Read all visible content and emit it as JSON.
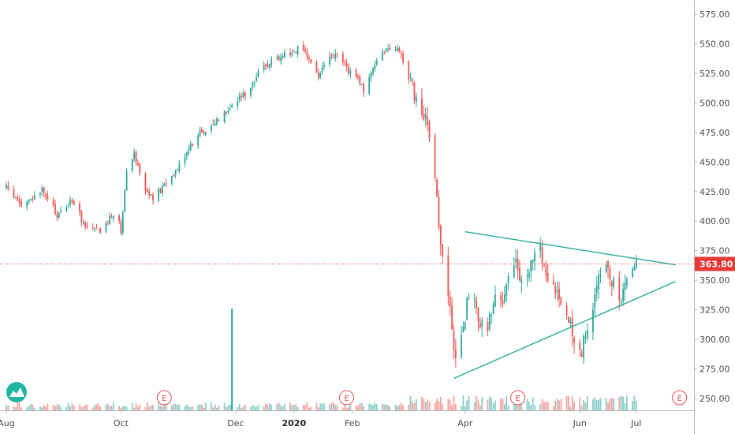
{
  "chart_data": {
    "type": "candlestick",
    "title": "",
    "xlabel": "",
    "ylabel": "",
    "ylim": [
      242,
      582
    ],
    "grid": false,
    "y_ticks": [
      250,
      275,
      300,
      325,
      350,
      375,
      400,
      425,
      450,
      475,
      500,
      525,
      550,
      575
    ],
    "y_tick_labels": [
      "250.00",
      "275.00",
      "300.00",
      "325.00",
      "350.00",
      "375.00",
      "400.00",
      "425.00",
      "450.00",
      "475.00",
      "500.00",
      "525.00",
      "550.00",
      "575.00"
    ],
    "x_ticks": [
      {
        "label": "Aug",
        "date": "2019-08-01",
        "bold": false
      },
      {
        "label": "Oct",
        "date": "2019-10-01",
        "bold": false
      },
      {
        "label": "Dec",
        "date": "2019-12-01",
        "bold": false
      },
      {
        "label": "2020",
        "date": "2020-01-01",
        "bold": true
      },
      {
        "label": "Feb",
        "date": "2020-02-01",
        "bold": false
      },
      {
        "label": "Apr",
        "date": "2020-04-01",
        "bold": false
      },
      {
        "label": "Jun",
        "date": "2020-06-01",
        "bold": false
      },
      {
        "label": "Jul",
        "date": "2020-07-01",
        "bold": false
      }
    ],
    "x_range": [
      "2019-08-01",
      "2020-07-25"
    ],
    "price_series": [
      {
        "date": "2019-08-01",
        "price": 428
      },
      {
        "date": "2019-08-10",
        "price": 412
      },
      {
        "date": "2019-08-20",
        "price": 426
      },
      {
        "date": "2019-08-28",
        "price": 405
      },
      {
        "date": "2019-09-05",
        "price": 418
      },
      {
        "date": "2019-09-12",
        "price": 395
      },
      {
        "date": "2019-09-20",
        "price": 390
      },
      {
        "date": "2019-09-28",
        "price": 410
      },
      {
        "date": "2019-10-01",
        "price": 392
      },
      {
        "date": "2019-10-04",
        "price": 445
      },
      {
        "date": "2019-10-08",
        "price": 458
      },
      {
        "date": "2019-10-13",
        "price": 430
      },
      {
        "date": "2019-10-18",
        "price": 418
      },
      {
        "date": "2019-10-25",
        "price": 432
      },
      {
        "date": "2019-11-01",
        "price": 448
      },
      {
        "date": "2019-11-06",
        "price": 462
      },
      {
        "date": "2019-11-12",
        "price": 475
      },
      {
        "date": "2019-11-18",
        "price": 480
      },
      {
        "date": "2019-11-25",
        "price": 493
      },
      {
        "date": "2019-12-02",
        "price": 502
      },
      {
        "date": "2019-12-08",
        "price": 512
      },
      {
        "date": "2019-12-14",
        "price": 527
      },
      {
        "date": "2019-12-20",
        "price": 536
      },
      {
        "date": "2019-12-27",
        "price": 541
      },
      {
        "date": "2020-01-03",
        "price": 545
      },
      {
        "date": "2020-01-09",
        "price": 538
      },
      {
        "date": "2020-01-14",
        "price": 522
      },
      {
        "date": "2020-01-18",
        "price": 536
      },
      {
        "date": "2020-01-24",
        "price": 540
      },
      {
        "date": "2020-01-30",
        "price": 528
      },
      {
        "date": "2020-02-04",
        "price": 522
      },
      {
        "date": "2020-02-08",
        "price": 505
      },
      {
        "date": "2020-02-12",
        "price": 532
      },
      {
        "date": "2020-02-18",
        "price": 545
      },
      {
        "date": "2020-02-22",
        "price": 541
      },
      {
        "date": "2020-02-26",
        "price": 546
      },
      {
        "date": "2020-03-01",
        "price": 525
      },
      {
        "date": "2020-03-05",
        "price": 508
      },
      {
        "date": "2020-03-09",
        "price": 492
      },
      {
        "date": "2020-03-12",
        "price": 480
      },
      {
        "date": "2020-03-15",
        "price": 445
      },
      {
        "date": "2020-03-18",
        "price": 400
      },
      {
        "date": "2020-03-21",
        "price": 360
      },
      {
        "date": "2020-03-24",
        "price": 330
      },
      {
        "date": "2020-03-27",
        "price": 278
      },
      {
        "date": "2020-03-30",
        "price": 298
      },
      {
        "date": "2020-04-03",
        "price": 340
      },
      {
        "date": "2020-04-08",
        "price": 320
      },
      {
        "date": "2020-04-12",
        "price": 300
      },
      {
        "date": "2020-04-17",
        "price": 345
      },
      {
        "date": "2020-04-21",
        "price": 335
      },
      {
        "date": "2020-04-26",
        "price": 372
      },
      {
        "date": "2020-05-01",
        "price": 348
      },
      {
        "date": "2020-05-06",
        "price": 360
      },
      {
        "date": "2020-05-10",
        "price": 382
      },
      {
        "date": "2020-05-14",
        "price": 352
      },
      {
        "date": "2020-05-19",
        "price": 345
      },
      {
        "date": "2020-05-24",
        "price": 330
      },
      {
        "date": "2020-05-28",
        "price": 302
      },
      {
        "date": "2020-06-02",
        "price": 292
      },
      {
        "date": "2020-06-06",
        "price": 318
      },
      {
        "date": "2020-06-10",
        "price": 345
      },
      {
        "date": "2020-06-14",
        "price": 368
      },
      {
        "date": "2020-06-18",
        "price": 352
      },
      {
        "date": "2020-06-22",
        "price": 330
      },
      {
        "date": "2020-06-26",
        "price": 346
      },
      {
        "date": "2020-06-29",
        "price": 358
      },
      {
        "date": "2020-07-01",
        "price": 363.8
      }
    ],
    "volume_spike": {
      "date": "2019-11-29",
      "price_top": 326
    },
    "trendlines": [
      {
        "name": "upper",
        "start": {
          "date": "2020-04-01",
          "price": 391
        },
        "end": {
          "date": "2020-07-22",
          "price": 363
        }
      },
      {
        "name": "lower",
        "start": {
          "date": "2020-03-26",
          "price": 267
        },
        "end": {
          "date": "2020-07-22",
          "price": 349
        }
      }
    ],
    "current_price": 363.8,
    "current_price_label": "363.80",
    "earnings_markers": [
      {
        "date": "2019-10-24",
        "label": "E"
      },
      {
        "date": "2020-01-29",
        "label": "E"
      },
      {
        "date": "2020-04-29",
        "label": "E"
      },
      {
        "date": "2020-07-24",
        "label": "E"
      }
    ],
    "colors": {
      "up": "#26a69a",
      "down": "#ef5350",
      "trendline": "#22ab94",
      "price_line": "#e53935",
      "axis_text": "#4a4a4a",
      "earnings": "#e04b4b",
      "logo": "#1fb5a0"
    }
  }
}
